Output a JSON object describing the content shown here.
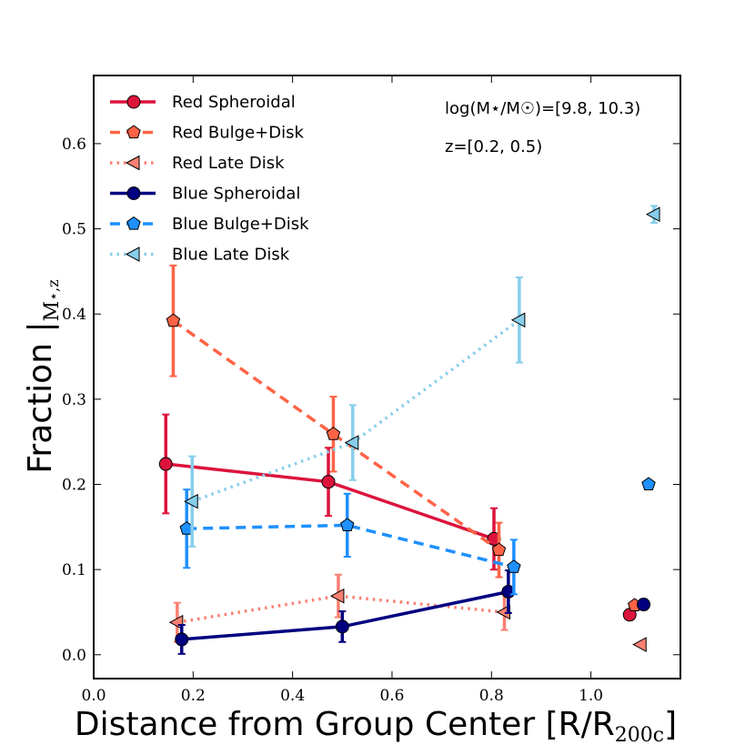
{
  "chart_data": {
    "type": "scatter",
    "xlabel_main": "Distance from Group Center [R/R",
    "xlabel_sub": "200c",
    "xlabel_close": "]",
    "ylabel_main": "Fraction |",
    "ylabel_sub": "M",
    "ylabel_sub2": "⋆,z",
    "xlim": [
      0.0,
      1.18
    ],
    "ylim": [
      -0.028,
      0.68
    ],
    "xticks": [
      0.0,
      0.2,
      0.4,
      0.6,
      0.8,
      1.0
    ],
    "xtick_labels": [
      "0.0",
      "0.2",
      "0.4",
      "0.6",
      "0.8",
      "1.0"
    ],
    "yticks": [
      0.0,
      0.1,
      0.2,
      0.3,
      0.4,
      0.5,
      0.6
    ],
    "ytick_labels": [
      "0.0",
      "0.1",
      "0.2",
      "0.3",
      "0.4",
      "0.5",
      "0.6"
    ],
    "annotations": [
      "log(M⋆/M☉)=[9.8, 10.3)",
      "z=[0.2, 0.5)"
    ],
    "legend_position": "top-left",
    "series": [
      {
        "name": "Red Spheroidal",
        "color": "#dc143c",
        "marker": "circle",
        "line": "solid",
        "x": [
          0.145,
          0.472,
          0.805
        ],
        "y": [
          0.224,
          0.203,
          0.136
        ],
        "yerr": [
          0.058,
          0.04,
          0.036
        ],
        "isolated": {
          "x": 1.078,
          "y": 0.047
        }
      },
      {
        "name": "Red Bulge+Disk",
        "color": "#ff6347",
        "marker": "pentagon",
        "line": "dashed",
        "x": [
          0.16,
          0.482,
          0.815
        ],
        "y": [
          0.392,
          0.259,
          0.123
        ],
        "yerr": [
          0.065,
          0.044,
          0.032
        ],
        "isolated": {
          "x": 1.088,
          "y": 0.058
        }
      },
      {
        "name": "Red Late Disk",
        "color": "#fa8072",
        "marker": "triangle-left",
        "line": "dotted",
        "x": [
          0.168,
          0.492,
          0.826
        ],
        "y": [
          0.038,
          0.069,
          0.05
        ],
        "yerr": [
          0.023,
          0.025,
          0.021
        ],
        "isolated": {
          "x": 1.1,
          "y": 0.012
        }
      },
      {
        "name": "Blue Spheroidal",
        "color": "#000080",
        "marker": "circle",
        "line": "solid",
        "x": [
          0.177,
          0.5,
          0.834
        ],
        "y": [
          0.018,
          0.033,
          0.074
        ],
        "yerr": [
          0.017,
          0.018,
          0.025
        ],
        "isolated": {
          "x": 1.106,
          "y": 0.059
        }
      },
      {
        "name": "Blue Bulge+Disk",
        "color": "#1e90ff",
        "marker": "pentagon",
        "line": "dashed",
        "x": [
          0.187,
          0.51,
          0.845
        ],
        "y": [
          0.148,
          0.152,
          0.103
        ],
        "yerr": [
          0.046,
          0.037,
          0.032
        ],
        "isolated": {
          "x": 1.116,
          "y": 0.2
        }
      },
      {
        "name": "Blue Late Disk",
        "color": "#87ceeb",
        "marker": "triangle-left",
        "line": "dotted",
        "x": [
          0.198,
          0.521,
          0.856
        ],
        "y": [
          0.18,
          0.249,
          0.393
        ],
        "yerr": [
          0.053,
          0.044,
          0.05
        ],
        "isolated": {
          "x": 1.127,
          "y": 0.517
        },
        "isolated_err": 0.01
      }
    ]
  }
}
